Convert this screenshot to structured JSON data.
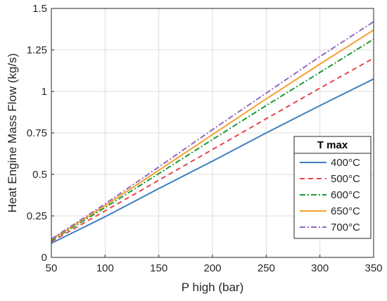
{
  "chart_data": {
    "type": "line",
    "xlabel": "P high (bar)",
    "ylabel": "Heat Engine Mass Flow (kg/s)",
    "xlim": [
      50,
      350
    ],
    "ylim": [
      0,
      1.5
    ],
    "xticks": [
      50,
      100,
      150,
      200,
      250,
      300,
      350
    ],
    "xtick_labels": [
      "50",
      "100",
      "150",
      "200",
      "250",
      "300",
      "350"
    ],
    "yticks": [
      0,
      0.25,
      0.5,
      0.75,
      1,
      1.25,
      1.5
    ],
    "ytick_labels": [
      "0",
      "0.25",
      "0.5",
      "0.75",
      "1",
      "1.25",
      "1.5"
    ],
    "grid": true,
    "legend": {
      "title": "T max",
      "placement": "bottom-right"
    },
    "x": [
      50,
      100,
      150,
      200,
      250,
      300,
      350
    ],
    "series": [
      {
        "name": "400°C",
        "color": "#3d7fc1",
        "dash": "solid",
        "values": [
          0.085,
          0.245,
          0.415,
          0.58,
          0.75,
          0.915,
          1.075
        ]
      },
      {
        "name": "500°C",
        "color": "#e8454a",
        "dash": "dashed",
        "values": [
          0.095,
          0.28,
          0.465,
          0.65,
          0.835,
          1.02,
          1.2
        ]
      },
      {
        "name": "600°C",
        "color": "#1a9a32",
        "dash": "dashdot",
        "values": [
          0.102,
          0.3,
          0.505,
          0.71,
          0.915,
          1.115,
          1.315
        ]
      },
      {
        "name": "650°C",
        "color": "#f5a030",
        "dash": "solid",
        "values": [
          0.107,
          0.312,
          0.525,
          0.74,
          0.955,
          1.165,
          1.37
        ]
      },
      {
        "name": "700°C",
        "color": "#9467bd",
        "dash": "dashdot",
        "values": [
          0.11,
          0.322,
          0.545,
          0.77,
          0.99,
          1.21,
          1.42
        ]
      }
    ]
  }
}
